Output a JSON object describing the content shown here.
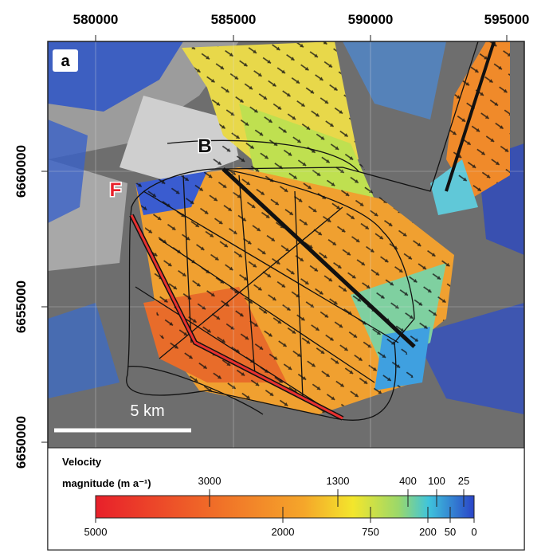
{
  "map": {
    "panel_label": "a",
    "x_tick_labels": [
      "580000",
      "585000",
      "590000",
      "595000"
    ],
    "y_tick_labels": [
      "6660000",
      "6655000",
      "6650000"
    ],
    "place_labels": [
      "B",
      "F"
    ],
    "scale_bar_label": "5 km",
    "legend": {
      "title_line1": "Velocity",
      "title_line2": "magnitude (m a⁻¹)",
      "top_ticks": [
        "3000",
        "1300",
        "400",
        "100",
        "25"
      ],
      "bottom_ticks": [
        "5000",
        "2000",
        "750",
        "200",
        "50",
        "0"
      ]
    }
  }
}
